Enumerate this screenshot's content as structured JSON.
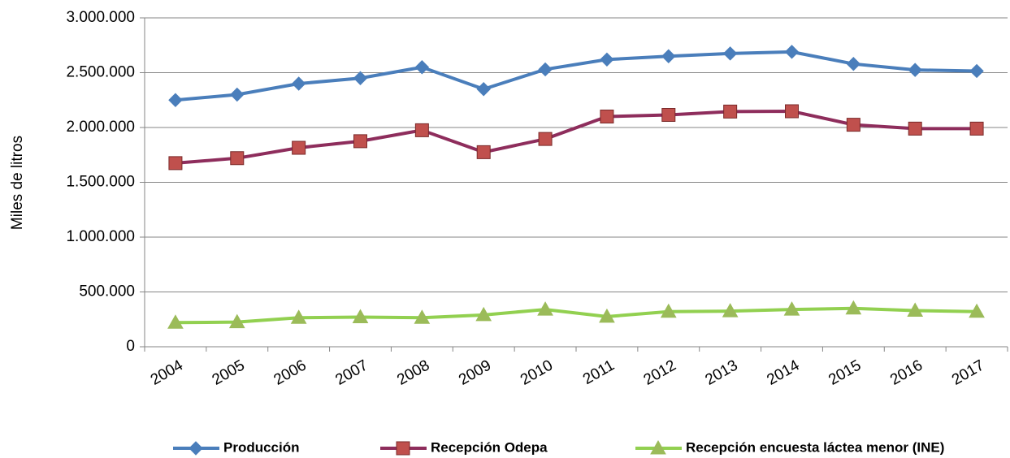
{
  "chart_data": {
    "type": "line",
    "y_label": "Miles de litros",
    "categories": [
      "2004",
      "2005",
      "2006",
      "2007",
      "2008",
      "2009",
      "2010",
      "2011",
      "2012",
      "2013",
      "2014",
      "2015",
      "2016",
      "2017"
    ],
    "series": [
      {
        "name": "Producción",
        "color": "#4a7ebb",
        "marker": "diamond",
        "marker_color": "#4a7ebb",
        "values": [
          2250000,
          2300000,
          2400000,
          2450000,
          2550000,
          2350000,
          2530000,
          2620000,
          2650000,
          2675000,
          2690000,
          2580000,
          2525000,
          2515000
        ]
      },
      {
        "name": "Recepción Odepa",
        "color": "#8e2d5c",
        "marker": "square",
        "marker_color": "#c0504d",
        "values": [
          1675000,
          1720000,
          1815000,
          1875000,
          1975000,
          1775000,
          1895000,
          2100000,
          2115000,
          2145000,
          2148000,
          2025000,
          1990000,
          1990000
        ]
      },
      {
        "name": "Recepción encuesta láctea menor (INE)",
        "color": "#92d050",
        "marker": "triangle",
        "marker_color": "#9bbb59",
        "values": [
          220000,
          225000,
          265000,
          270000,
          265000,
          290000,
          340000,
          275000,
          320000,
          325000,
          340000,
          350000,
          330000,
          320000
        ]
      }
    ],
    "ylim": [
      0,
      3000000
    ],
    "yticks": [
      0,
      {
        "value": 500000,
        "label": "500.000"
      },
      {
        "value": 1000000,
        "label": "1.000.000"
      },
      {
        "value": 1500000,
        "label": "1.500.000"
      },
      {
        "value": 2000000,
        "label": "2.000.000"
      },
      {
        "value": 2500000,
        "label": "2.500.000"
      },
      {
        "value": 3000000,
        "label": "3.000.000"
      }
    ],
    "grid": true,
    "legend": "bottom"
  }
}
